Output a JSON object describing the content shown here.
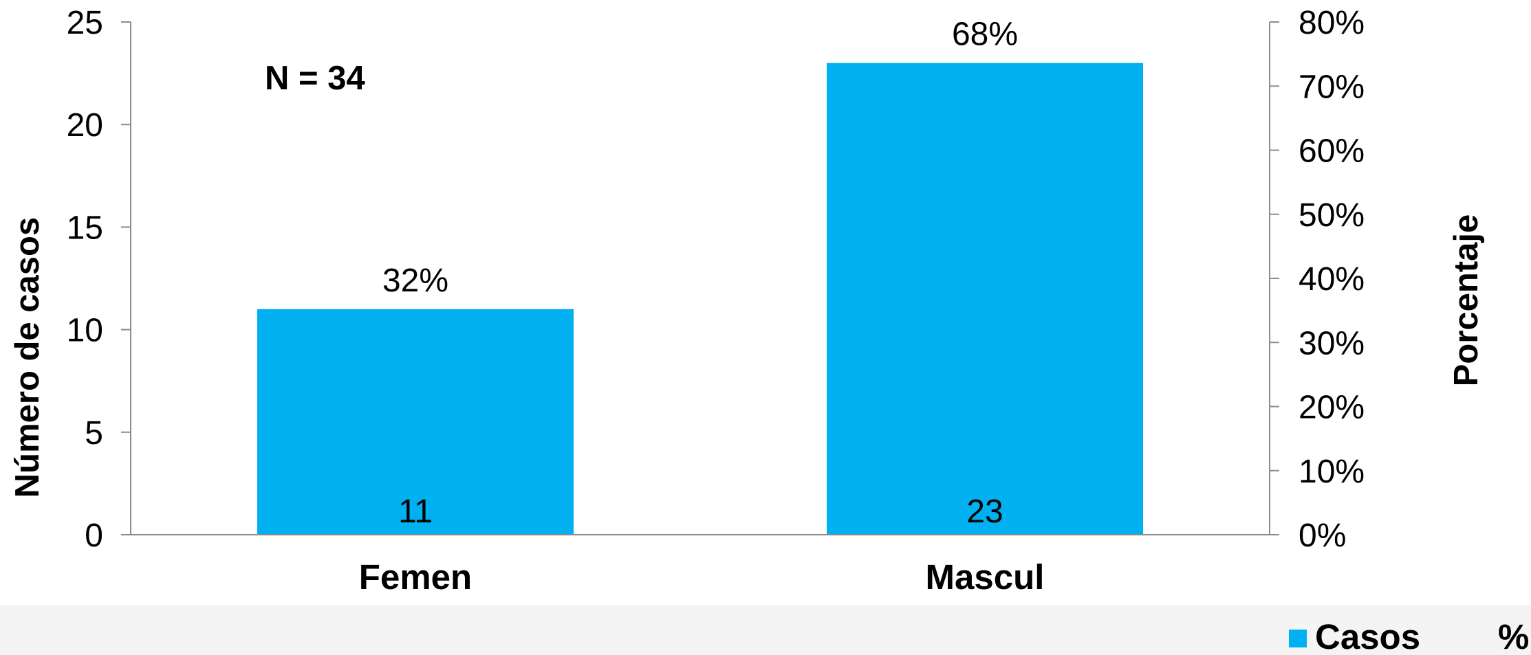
{
  "chart_data": {
    "type": "bar",
    "categories": [
      "Femen",
      "Mascul"
    ],
    "series": [
      {
        "name": "Casos",
        "values": [
          11,
          23
        ],
        "color": "#00b0f0"
      }
    ],
    "percent_labels": [
      "32%",
      "68%"
    ],
    "value_labels": [
      "11",
      "23"
    ],
    "annotation": "N = 34",
    "ylabel": "Número de casos",
    "ylabel_right": "Porcentaje",
    "ylim": [
      0,
      25
    ],
    "y_ticks": [
      "0",
      "5",
      "10",
      "15",
      "20",
      "25"
    ],
    "ylim_right": [
      0,
      80
    ],
    "y_ticks_right": [
      "0%",
      "10%",
      "20%",
      "30%",
      "40%",
      "50%",
      "60%",
      "70%",
      "80%"
    ],
    "legend": [
      {
        "label": "Casos",
        "color": "#00b0f0"
      },
      {
        "label": "%"
      }
    ],
    "legend_position": "bottom-right",
    "grid": false
  }
}
